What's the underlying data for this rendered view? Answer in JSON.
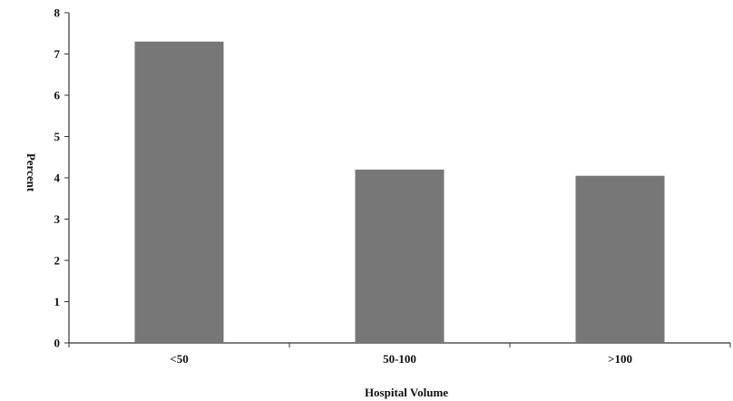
{
  "chart_data": {
    "type": "bar",
    "categories": [
      "<50",
      "50-100",
      ">100"
    ],
    "values": [
      7.3,
      4.2,
      4.05
    ],
    "title": "",
    "xlabel": "Hospital Volume",
    "ylabel": "Percent",
    "ylim": [
      0,
      8
    ],
    "yticks": [
      "0",
      "1",
      "2",
      "3",
      "4",
      "5",
      "6",
      "7",
      "8"
    ],
    "grid": false,
    "legend": "none",
    "bar_color": "#777777",
    "axis_color": "#333333"
  }
}
